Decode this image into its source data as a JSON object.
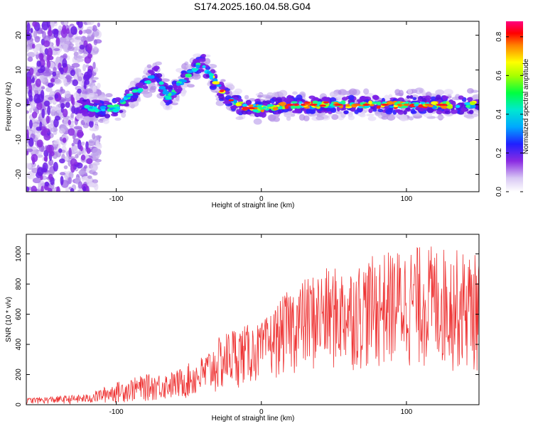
{
  "title": "S174.2025.160.04.58.G04",
  "chart_data": [
    {
      "type": "heatmap",
      "xlabel": "Height of straight line (km)",
      "ylabel": "Frequency (Hz)",
      "xlim": [
        -162,
        150
      ],
      "ylim": [
        -25,
        24
      ],
      "xticks": [
        -100,
        0,
        100
      ],
      "yticks": [
        -20,
        -10,
        0,
        10,
        20
      ],
      "colorbar": {
        "label": "Normalized spectral amplitude",
        "range": [
          0,
          0.88
        ],
        "ticks": [
          0.0,
          0.2,
          0.4,
          0.6,
          0.8
        ]
      },
      "ridge": [
        {
          "x": -122,
          "y": -1
        },
        {
          "x": -110,
          "y": -1
        },
        {
          "x": -100,
          "y": -1
        },
        {
          "x": -92,
          "y": 2
        },
        {
          "x": -85,
          "y": 4
        },
        {
          "x": -78,
          "y": 7
        },
        {
          "x": -72,
          "y": 9
        },
        {
          "x": -65,
          "y": 2
        },
        {
          "x": -58,
          "y": 5
        },
        {
          "x": -50,
          "y": 9
        },
        {
          "x": -40,
          "y": 12
        },
        {
          "x": -33,
          "y": 7
        },
        {
          "x": -28,
          "y": 4
        },
        {
          "x": -20,
          "y": 1
        },
        {
          "x": -10,
          "y": -1
        },
        {
          "x": 0,
          "y": -1
        },
        {
          "x": 20,
          "y": 0
        },
        {
          "x": 60,
          "y": 0
        },
        {
          "x": 100,
          "y": 0
        },
        {
          "x": 150,
          "y": 0
        }
      ]
    },
    {
      "type": "line",
      "xlabel": "Height of straight line (km)",
      "ylabel": "SNR (10 * v/v)",
      "xlim": [
        -162,
        150
      ],
      "ylim": [
        0,
        1130
      ],
      "xticks": [
        -100,
        0,
        100
      ],
      "yticks": [
        0,
        200,
        400,
        600,
        800,
        1000
      ],
      "color": "#ee3333",
      "envelope": [
        {
          "x": -162,
          "min": 5,
          "max": 45
        },
        {
          "x": -120,
          "min": 5,
          "max": 70
        },
        {
          "x": -100,
          "min": 10,
          "max": 150
        },
        {
          "x": -80,
          "min": 20,
          "max": 200
        },
        {
          "x": -60,
          "min": 30,
          "max": 220
        },
        {
          "x": -40,
          "min": 40,
          "max": 330
        },
        {
          "x": -30,
          "min": 60,
          "max": 440
        },
        {
          "x": -20,
          "min": 100,
          "max": 520
        },
        {
          "x": 0,
          "min": 150,
          "max": 540
        },
        {
          "x": 20,
          "min": 200,
          "max": 780
        },
        {
          "x": 40,
          "min": 200,
          "max": 900
        },
        {
          "x": 60,
          "min": 220,
          "max": 920
        },
        {
          "x": 80,
          "min": 220,
          "max": 1000
        },
        {
          "x": 100,
          "min": 230,
          "max": 1050
        },
        {
          "x": 120,
          "min": 220,
          "max": 1060
        },
        {
          "x": 150,
          "min": 200,
          "max": 1000
        }
      ]
    }
  ]
}
